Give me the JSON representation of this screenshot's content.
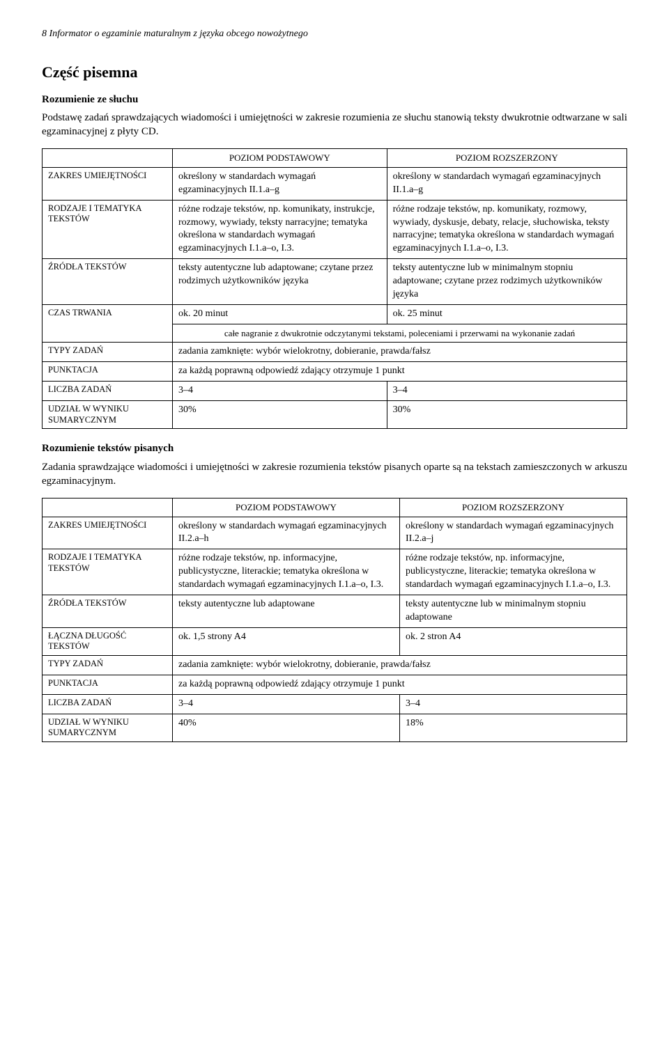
{
  "page_header": "8    Informator o egzaminie maturalnym z języka obcego nowożytnego",
  "title": "Część pisemna",
  "section1": {
    "heading": "Rozumienie ze słuchu",
    "intro": "Podstawę zadań sprawdzających wiadomości i umiejętności w zakresie rozumienia ze słuchu stanowią teksty dwukrotnie odtwarzane w sali egzaminacyjnej z płyty CD.",
    "col1": "POZIOM PODSTAWOWY",
    "col2": "POZIOM ROZSZERZONY",
    "r1_label": "ZAKRES UMIEJĘTNOŚCI",
    "r1_c1": "określony w standardach wymagań egzaminacyjnych II.1.a–g",
    "r1_c2": "określony w standardach wymagań egzaminacyjnych II.1.a–g",
    "r2_label": "RODZAJE I TEMATYKA TEKSTÓW",
    "r2_c1": "różne rodzaje tekstów, np. komunikaty, instrukcje, rozmowy, wywiady, teksty narracyjne; tematyka określona w standardach wymagań egzaminacyjnych I.1.a–o, I.3.",
    "r2_c2": "różne rodzaje tekstów, np. komunikaty, rozmowy, wywiady, dyskusje, debaty, relacje, słuchowiska, teksty narracyjne; tematyka określona w standardach wymagań egzaminacyjnych I.1.a–o, I.3.",
    "r3_label": "ŹRÓDŁA TEKSTÓW",
    "r3_c1": "teksty autentyczne lub adaptowane; czytane przez rodzimych użytkowników języka",
    "r3_c2": "teksty autentyczne lub w minimalnym stopniu adaptowane; czytane przez rodzimych użytkowników języka",
    "r4_label": "CZAS TRWANIA",
    "r4_c1": "ok. 20 minut",
    "r4_c2": "ok. 25 minut",
    "r4_note": "całe nagranie z dwukrotnie odczytanymi tekstami, poleceniami i przerwami na wykonanie zadań",
    "r5_label": "TYPY ZADAŃ",
    "r5_span": "zadania zamknięte: wybór wielokrotny, dobieranie, prawda/fałsz",
    "r6_label": "PUNKTACJA",
    "r6_span": "za każdą poprawną odpowiedź zdający otrzymuje 1 punkt",
    "r7_label": "LICZBA ZADAŃ",
    "r7_c1": "3–4",
    "r7_c2": "3–4",
    "r8_label": "UDZIAŁ W WYNIKU SUMARYCZNYM",
    "r8_c1": "30%",
    "r8_c2": "30%"
  },
  "section2": {
    "heading": "Rozumienie tekstów pisanych",
    "intro": "Zadania sprawdzające wiadomości i umiejętności w zakresie rozumienia tekstów pisanych oparte są na tekstach zamieszczonych w arkuszu egzaminacyjnym.",
    "col1": "POZIOM PODSTAWOWY",
    "col2": "POZIOM ROZSZERZONY",
    "r1_label": "ZAKRES UMIEJĘTNOŚCI",
    "r1_c1": "określony w standardach wymagań egzaminacyjnych II.2.a–h",
    "r1_c2": "określony w standardach wymagań egzaminacyjnych II.2.a–j",
    "r2_label": "RODZAJE I TEMATYKA TEKSTÓW",
    "r2_c1": "różne rodzaje tekstów, np. informacyjne, publicystyczne, literackie; tematyka określona w standardach wymagań egzaminacyjnych I.1.a–o, I.3.",
    "r2_c2": "różne rodzaje tekstów, np. informacyjne, publicystyczne, literackie; tematyka określona w standardach wymagań egzaminacyjnych I.1.a–o, I.3.",
    "r3_label": "ŹRÓDŁA TEKSTÓW",
    "r3_c1": "teksty autentyczne lub adaptowane",
    "r3_c2": "teksty autentyczne lub w minimalnym stopniu adaptowane",
    "r4_label": "ŁĄCZNA DŁUGOŚĆ TEKSTÓW",
    "r4_c1": "ok. 1,5 strony A4",
    "r4_c2": "ok. 2 stron A4",
    "r5_label": "TYPY ZADAŃ",
    "r5_span": "zadania zamknięte: wybór wielokrotny, dobieranie, prawda/fałsz",
    "r6_label": "PUNKTACJA",
    "r6_span": "za każdą poprawną odpowiedź zdający otrzymuje 1 punkt",
    "r7_label": "LICZBA ZADAŃ",
    "r7_c1": "3–4",
    "r7_c2": "3–4",
    "r8_label": "UDZIAŁ W WYNIKU SUMARYCZNYM",
    "r8_c1": "40%",
    "r8_c2": "18%"
  }
}
